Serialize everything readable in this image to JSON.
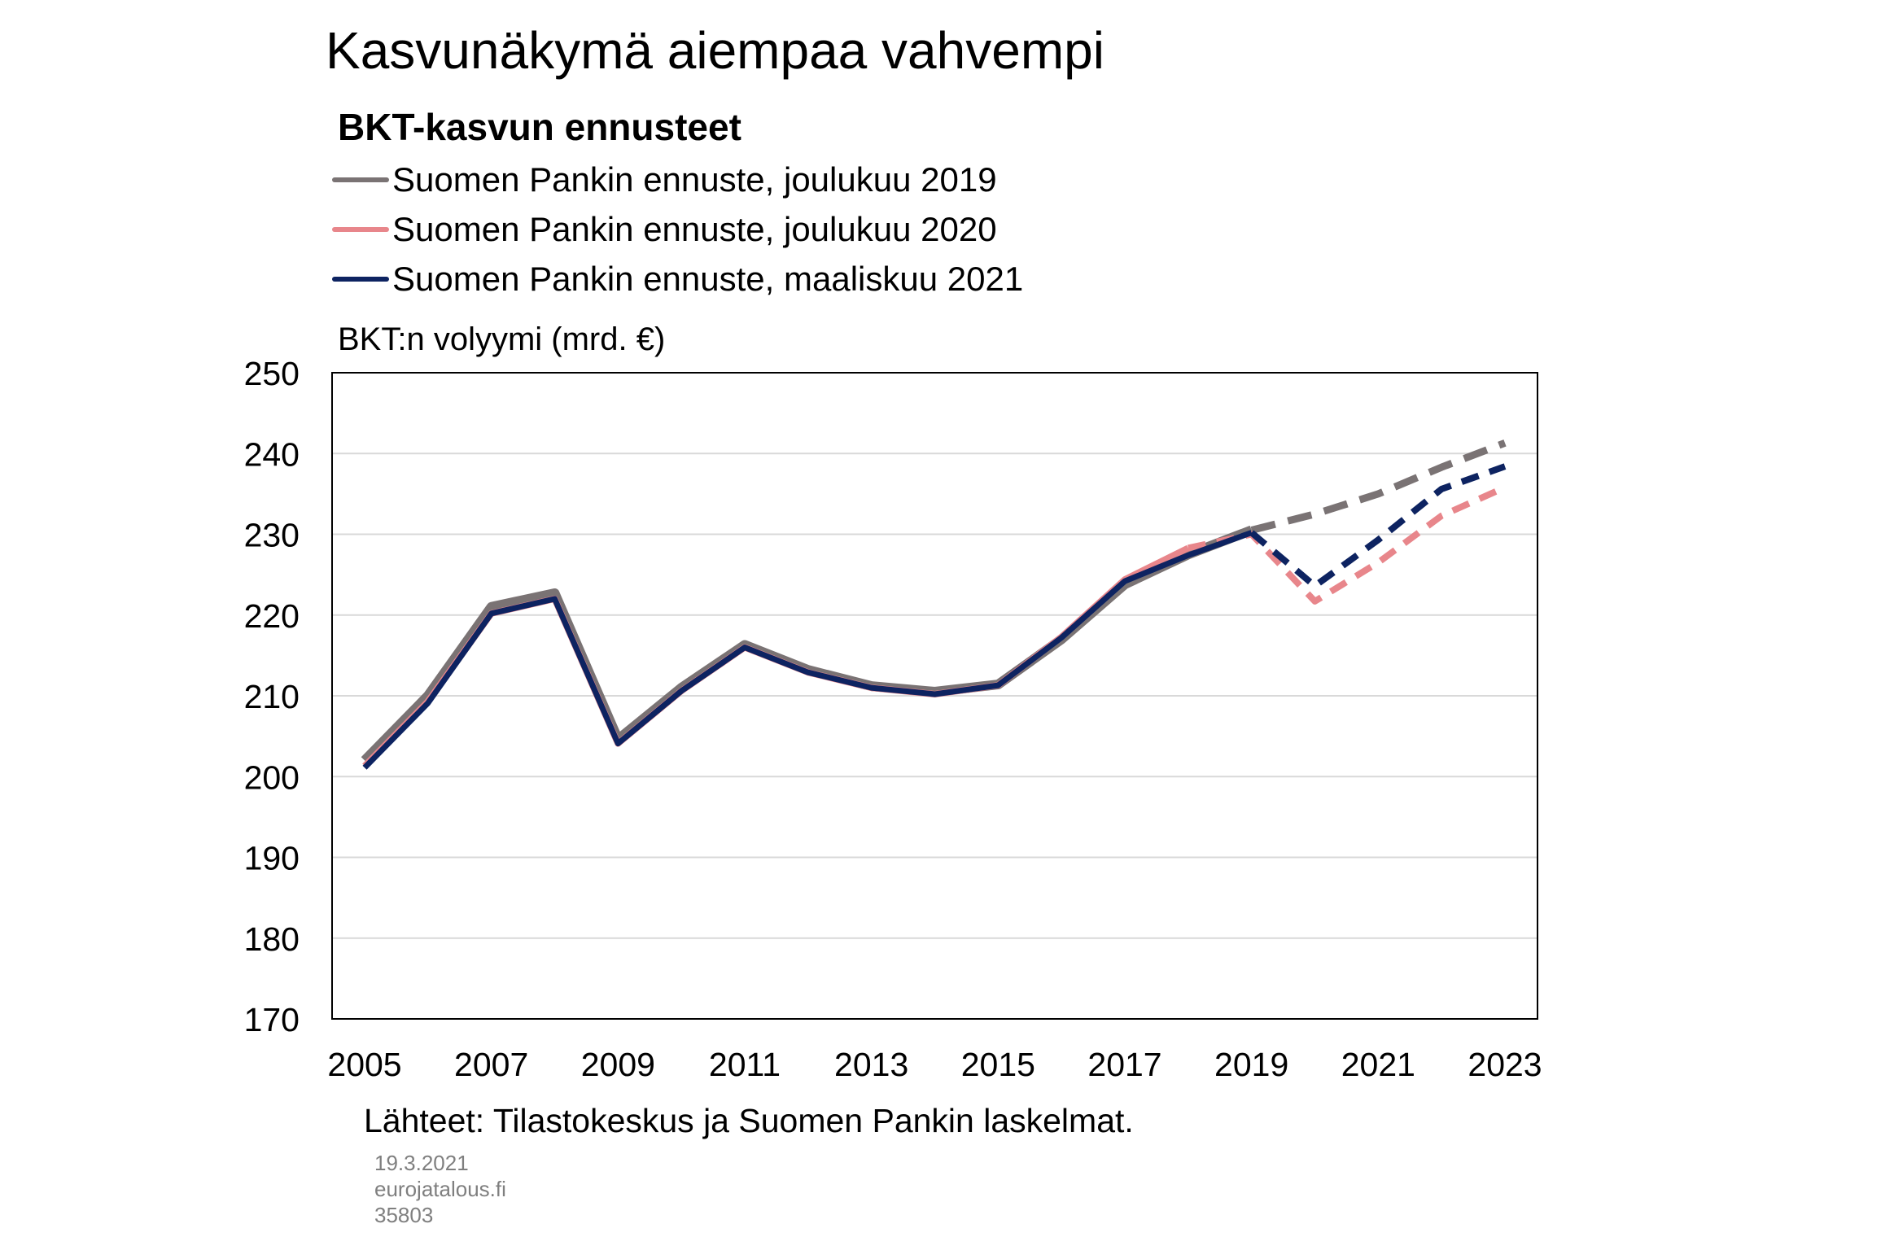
{
  "title": "Kasvunäkymä aiempaa vahvempi",
  "subtitle": "BKT-kasvun ennusteet",
  "source": "Lähteet: Tilastokeskus ja Suomen Pankin laskelmat.",
  "meta": {
    "date": "19.3.2021",
    "site": "eurojatalous.fi",
    "id": "35803"
  },
  "chart_data": {
    "type": "line",
    "ylabel": "BKT:n volyymi (mrd. €)",
    "xlabel": "",
    "xlim": [
      2005,
      2023
    ],
    "ylim": [
      170,
      250
    ],
    "yticks": [
      170,
      180,
      190,
      200,
      210,
      220,
      230,
      240,
      250
    ],
    "xticks": [
      2005,
      2007,
      2009,
      2011,
      2013,
      2015,
      2017,
      2019,
      2021,
      2023
    ],
    "grid": "horizontal",
    "legend": "top-left",
    "series": [
      {
        "name": "Suomen Pankin ennuste, joulukuu 2019",
        "color": "#7a7374",
        "x": [
          2005,
          2006,
          2007,
          2008,
          2009,
          2010,
          2011,
          2012,
          2013,
          2014,
          2015,
          2016,
          2017,
          2018,
          2019,
          2020,
          2021,
          2022,
          2023
        ],
        "values": [
          202.0,
          210.0,
          221.0,
          222.7,
          204.6,
          211.0,
          216.3,
          213.2,
          211.2,
          210.5,
          211.4,
          217.0,
          223.8,
          227.5,
          230.5,
          232.5,
          235.0,
          238.3,
          241.3
        ],
        "forecast_from": 2019
      },
      {
        "name": "Suomen Pankin ennuste, joulukuu 2020",
        "color": "#e8868b",
        "x": [
          2005,
          2006,
          2007,
          2008,
          2009,
          2010,
          2011,
          2012,
          2013,
          2014,
          2015,
          2016,
          2017,
          2018,
          2019,
          2020,
          2021,
          2022,
          2023
        ],
        "values": [
          201.3,
          209.3,
          220.2,
          222.0,
          204.1,
          210.6,
          216.0,
          212.9,
          211.0,
          210.2,
          211.3,
          217.3,
          224.4,
          228.3,
          230.0,
          221.7,
          226.5,
          232.3,
          235.8
        ],
        "forecast_from": 2018
      },
      {
        "name": "Suomen Pankin ennuste, maaliskuu 2021",
        "color": "#0d2361",
        "x": [
          2005,
          2006,
          2007,
          2008,
          2009,
          2010,
          2011,
          2012,
          2013,
          2014,
          2015,
          2016,
          2017,
          2018,
          2019,
          2020,
          2021,
          2022,
          2023
        ],
        "values": [
          201.1,
          209.1,
          220.2,
          222.0,
          204.1,
          210.6,
          216.0,
          212.9,
          211.0,
          210.2,
          211.3,
          217.2,
          224.2,
          227.4,
          230.2,
          223.6,
          229.3,
          235.6,
          238.4
        ],
        "forecast_from": 2019
      }
    ]
  }
}
